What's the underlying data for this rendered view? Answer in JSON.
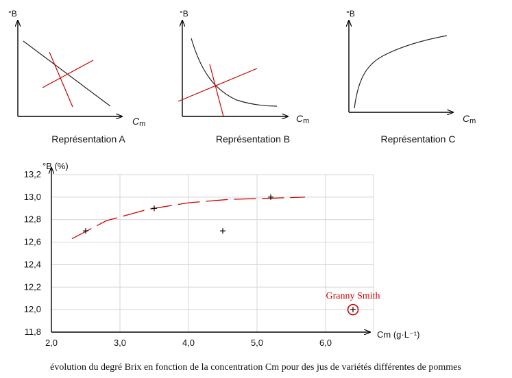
{
  "schematics": [
    {
      "id": "A",
      "ylabel": "°B",
      "xlabel": "C",
      "xlabel_sub": "m",
      "caption": "Représentation A",
      "shape": "linear-decreasing",
      "tangents": true
    },
    {
      "id": "B",
      "ylabel": "°B",
      "xlabel": "C",
      "xlabel_sub": "m",
      "caption": "Représentation B",
      "shape": "decreasing-convex",
      "tangents": true
    },
    {
      "id": "C",
      "ylabel": "°B",
      "xlabel": "C",
      "xlabel_sub": "m",
      "caption": "Représentation C",
      "shape": "increasing-concave",
      "tangents": false
    }
  ],
  "chart_data": {
    "type": "scatter",
    "ylabel": "°B (%)",
    "xlabel": "Cm (g·L⁻¹)",
    "xlim": [
      2.0,
      7.0
    ],
    "ylim": [
      11.8,
      13.2
    ],
    "xticks": [
      "2,0",
      "3,0",
      "4,0",
      "5,0",
      "6,0"
    ],
    "yticks": [
      "11,8",
      "12,0",
      "12,2",
      "12,4",
      "12,6",
      "12,8",
      "13,0",
      "13,2"
    ],
    "grid": true,
    "points": [
      {
        "x": 2.5,
        "y": 12.7
      },
      {
        "x": 3.5,
        "y": 12.9
      },
      {
        "x": 4.5,
        "y": 12.7
      },
      {
        "x": 5.2,
        "y": 13.0
      },
      {
        "x": 6.4,
        "y": 12.0
      }
    ],
    "trend_line": {
      "x": [
        2.3,
        2.8,
        3.4,
        4.0,
        4.6,
        5.2,
        5.7
      ],
      "y": [
        12.63,
        12.79,
        12.89,
        12.95,
        12.98,
        12.99,
        13.0
      ],
      "style": "dashed",
      "color": "#cc0000"
    },
    "annotation": {
      "text": "Granny Smith",
      "x": 6.4,
      "y": 12.0,
      "color": "#cc0000"
    },
    "caption": "évolution du degré Brix en fonction de la concentration Cm pour des jus de variétés différentes de pommes"
  }
}
